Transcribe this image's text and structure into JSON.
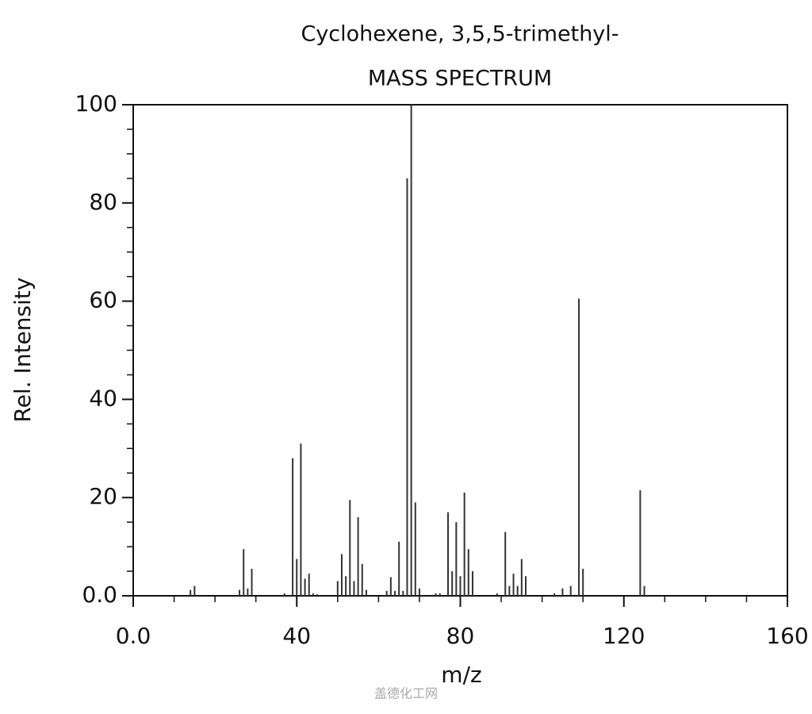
{
  "chart_data": {
    "type": "bar",
    "title": "Cyclohexene, 3,5,5-trimethyl-",
    "subtitle": "MASS SPECTRUM",
    "x_label": "m/z",
    "y_label": "Rel. Intensity",
    "watermark": "盖德化工网",
    "color": "#333333",
    "x": [
      14,
      15,
      26,
      27,
      28,
      29,
      37,
      39,
      40,
      41,
      42,
      43,
      44,
      45,
      50,
      51,
      52,
      53,
      54,
      55,
      56,
      57,
      62,
      63,
      64,
      65,
      66,
      67,
      68,
      69,
      70,
      74,
      75,
      77,
      78,
      79,
      80,
      81,
      82,
      83,
      89,
      91,
      92,
      93,
      94,
      95,
      96,
      103,
      105,
      107,
      109,
      110,
      124,
      125
    ],
    "values": [
      1.2,
      2,
      1.2,
      9.5,
      1.5,
      5.5,
      0.5,
      28,
      7.5,
      31,
      3.5,
      4.5,
      0.5,
      0.3,
      3,
      8.5,
      4,
      19.5,
      3,
      16,
      6.5,
      1.2,
      1,
      3.8,
      1,
      11,
      1,
      85,
      100,
      19,
      1.5,
      0.5,
      0.5,
      17,
      5,
      15,
      4,
      21,
      9.5,
      5,
      0.5,
      13,
      2,
      4.5,
      2,
      7.5,
      4,
      0.5,
      1.5,
      2,
      60.5,
      5.5,
      21.5,
      2
    ],
    "xlim": [
      0,
      160
    ],
    "ylim": [
      0,
      100
    ],
    "xticks": [
      {
        "value": 0,
        "label": "0.0"
      },
      40,
      80,
      120,
      160
    ],
    "yticks": [
      {
        "value": 0,
        "label": "0.0"
      },
      20,
      40,
      60,
      80,
      100
    ],
    "xminorticks": [
      10,
      20,
      30,
      50,
      60,
      70,
      90,
      100,
      110,
      130,
      140,
      150
    ],
    "yminorticks": [
      5,
      10,
      15,
      25,
      30,
      35,
      45,
      50,
      55,
      65,
      70,
      75,
      85,
      90,
      95
    ]
  }
}
